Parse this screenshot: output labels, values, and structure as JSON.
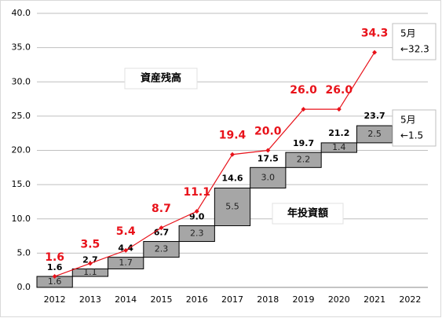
{
  "chart_data": {
    "type": "combo",
    "categories": [
      "2012",
      "2013",
      "2014",
      "2015",
      "2016",
      "2017",
      "2018",
      "2019",
      "2020",
      "2021",
      "2022"
    ],
    "series": [
      {
        "type": "bar",
        "color": "#a6a6a6",
        "values": [
          1.6,
          1.1,
          1.7,
          2.3,
          2.3,
          5.5,
          3.0,
          2.2,
          1.4,
          2.5,
          null
        ],
        "value_labels": [
          "1.6",
          "1.1",
          "1.7",
          "2.3",
          "2.3",
          "5.5",
          "3.0",
          "2.2",
          "1.4",
          "2.5",
          null
        ]
      },
      {
        "type": "label",
        "values": [
          1.6,
          2.7,
          4.4,
          6.7,
          9.0,
          14.6,
          17.5,
          19.7,
          21.2,
          23.7,
          null
        ],
        "value_labels": [
          "1.6",
          "2.7",
          "4.4",
          "6.7",
          "9.0",
          "14.6",
          "17.5",
          "19.7",
          "21.2",
          "23.7",
          null
        ]
      },
      {
        "type": "line",
        "color": "#e8121a",
        "values": [
          1.6,
          3.5,
          5.4,
          8.7,
          11.1,
          19.4,
          20.0,
          26.0,
          26.0,
          34.3,
          null
        ],
        "value_labels": [
          "1.6",
          "3.5",
          "5.4",
          "8.7",
          "11.1",
          "19.4",
          "20.0",
          "26.0",
          "26.0",
          "34.3",
          null
        ]
      }
    ],
    "ylim": [
      0,
      40
    ],
    "yticks": [
      {
        "value": 0,
        "label": "0.0"
      },
      {
        "value": 5,
        "label": "5.0"
      },
      {
        "value": 10,
        "label": "10.0"
      },
      {
        "value": 15,
        "label": "15.0"
      },
      {
        "value": 20,
        "label": "20.0"
      },
      {
        "value": 25,
        "label": "25.0"
      },
      {
        "value": 30,
        "label": "30.0"
      },
      {
        "value": 35,
        "label": "35.0"
      },
      {
        "value": 40,
        "label": "40.0"
      }
    ],
    "grid": true,
    "annotations": {
      "labels": [
        "資産残高",
        "年投資額"
      ],
      "callouts": [
        {
          "lines": [
            "5月",
            "←32.3"
          ]
        },
        {
          "lines": [
            "5月",
            "←1.5"
          ]
        }
      ]
    }
  }
}
